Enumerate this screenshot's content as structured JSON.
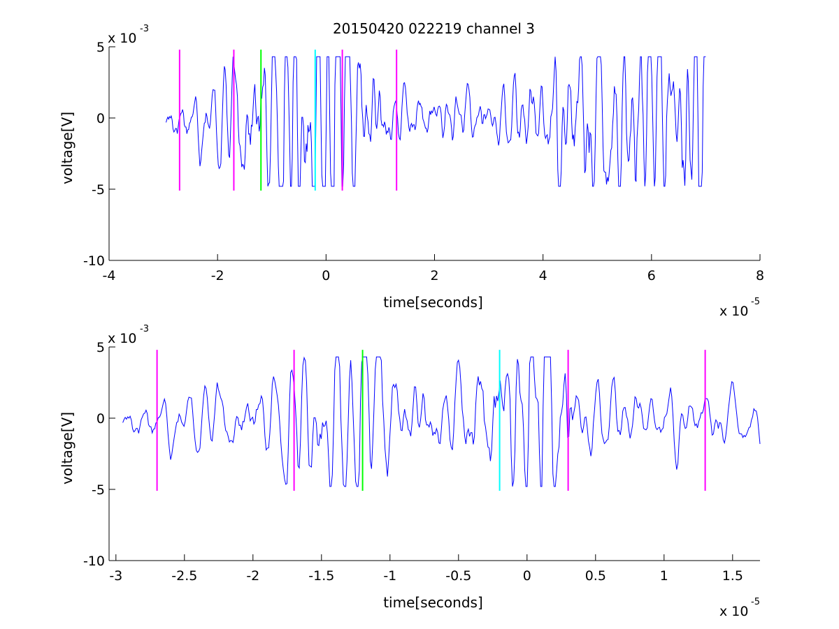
{
  "chart_data": [
    {
      "type": "line",
      "title": "20150420 022219 channel 3",
      "xlabel": "time[seconds]",
      "ylabel": "voltage[V]",
      "x_multiplier": "x 10",
      "x_exponent": "-5",
      "y_multiplier": "x 10",
      "y_exponent": "-3",
      "xlim": [
        -4,
        8
      ],
      "ylim": [
        -10,
        5
      ],
      "xticks": [
        -4,
        -2,
        0,
        2,
        4,
        6,
        8
      ],
      "xtick_labels": [
        "-4",
        "-2",
        "0",
        "2",
        "4",
        "6",
        "8"
      ],
      "yticks": [
        -10,
        -5,
        0,
        5
      ],
      "ytick_labels": [
        "-10",
        "-5",
        "0",
        "5"
      ],
      "trace_color": "#0000ff",
      "trace_xrange": [
        -2.95,
        7.0
      ],
      "trace_samples": 620,
      "trace_seed": 17,
      "trace_bursts": [
        {
          "center": -0.9,
          "width": 0.9,
          "amp": 3.0
        },
        {
          "center": 0.15,
          "width": 0.6,
          "amp": 4.2
        },
        {
          "center": 5.0,
          "width": 0.9,
          "amp": 3.4
        },
        {
          "center": 6.4,
          "width": 0.7,
          "amp": 3.6
        }
      ],
      "markers": [
        {
          "x": -2.7,
          "ymin": -5.1,
          "ymax": 4.8,
          "color": "#ff00ff"
        },
        {
          "x": -1.7,
          "ymin": -5.1,
          "ymax": 4.8,
          "color": "#ff00ff"
        },
        {
          "x": -1.2,
          "ymin": -5.1,
          "ymax": 4.8,
          "color": "#00ff00"
        },
        {
          "x": -0.2,
          "ymin": -5.1,
          "ymax": 4.8,
          "color": "#00ffff"
        },
        {
          "x": 0.3,
          "ymin": -5.1,
          "ymax": 4.8,
          "color": "#ff00ff"
        },
        {
          "x": 1.3,
          "ymin": -5.1,
          "ymax": 4.8,
          "color": "#ff00ff"
        }
      ]
    },
    {
      "type": "line",
      "xlabel": "time[seconds]",
      "ylabel": "voltage[V]",
      "x_multiplier": "x 10",
      "x_exponent": "-5",
      "y_multiplier": "x 10",
      "y_exponent": "-3",
      "xlim": [
        -3.05,
        1.7
      ],
      "ylim": [
        -10,
        5
      ],
      "xticks": [
        -3,
        -2.5,
        -2,
        -1.5,
        -1,
        -0.5,
        0,
        0.5,
        1,
        1.5
      ],
      "xtick_labels": [
        "-3",
        "-2.5",
        "-2",
        "-1.5",
        "-1",
        "-0.5",
        "0",
        "0.5",
        "1",
        "1.5"
      ],
      "yticks": [
        -10,
        -5,
        0,
        5
      ],
      "ytick_labels": [
        "-10",
        "-5",
        "0",
        "5"
      ],
      "trace_color": "#0000ff",
      "trace_xrange": [
        -2.95,
        1.7
      ],
      "trace_samples": 520,
      "trace_seed": 17,
      "trace_bursts": [
        {
          "center": -1.35,
          "width": 0.45,
          "amp": 2.6
        },
        {
          "center": -0.1,
          "width": 0.35,
          "amp": 3.4
        },
        {
          "center": 0.15,
          "width": 0.2,
          "amp": 4.2
        }
      ],
      "markers": [
        {
          "x": -2.7,
          "ymin": -5.1,
          "ymax": 4.8,
          "color": "#ff00ff"
        },
        {
          "x": -1.7,
          "ymin": -5.1,
          "ymax": 4.8,
          "color": "#ff00ff"
        },
        {
          "x": -1.2,
          "ymin": -5.1,
          "ymax": 4.8,
          "color": "#00ff00"
        },
        {
          "x": -0.2,
          "ymin": -5.1,
          "ymax": 4.8,
          "color": "#00ffff"
        },
        {
          "x": 0.3,
          "ymin": -5.1,
          "ymax": 4.8,
          "color": "#ff00ff"
        },
        {
          "x": 1.3,
          "ymin": -5.1,
          "ymax": 4.8,
          "color": "#ff00ff"
        }
      ]
    }
  ]
}
